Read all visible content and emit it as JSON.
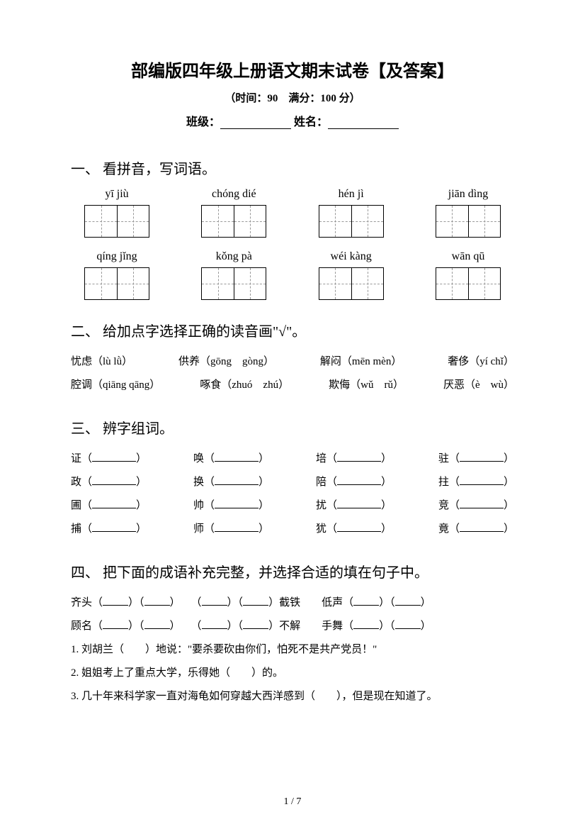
{
  "title": "部编版四年级上册语文期末试卷【及答案】",
  "subtitle": "（时间：90　满分：100 分）",
  "infoLine": {
    "classLabel": "班级：",
    "nameLabel": "姓名："
  },
  "section1": {
    "heading": "一、 看拼音，写词语。",
    "pinyinRows": [
      [
        "yī jiù",
        "chóng dié",
        "hén jì",
        "jiān dìng"
      ],
      [
        "qíng jǐng",
        "kǒng pà",
        "wéi kàng",
        "wān qū"
      ]
    ]
  },
  "section2": {
    "heading": "二、 给加点字选择正确的读音画\"√\"。",
    "lines": [
      [
        "忧虑（lù lǜ）",
        "供养（gōng　gòng）",
        "解闷（mēn mèn）",
        "奢侈（yí chǐ）"
      ],
      [
        "腔调（qiāng qāng）",
        "啄食（zhuó　zhú）",
        "欺侮（wǔ　rǔ）",
        "厌恶（è　wù）"
      ]
    ]
  },
  "section3": {
    "heading": "三、 辨字组词。",
    "rows": [
      [
        "证",
        "唤",
        "培",
        "驻"
      ],
      [
        "政",
        "换",
        "陪",
        "拄"
      ],
      [
        "圃",
        "帅",
        "扰",
        "竞"
      ],
      [
        "捕",
        "师",
        "犹",
        "竟"
      ]
    ]
  },
  "section4": {
    "heading": "四、 把下面的成语补充完整，并选择合适的填在句子中。",
    "idiomLine1": {
      "parts": [
        "齐头（",
        "）（",
        "）　　（",
        "）（",
        "）截铁　　低声（",
        "）（",
        "）"
      ]
    },
    "idiomLine2": {
      "parts": [
        "顾名（",
        "）（",
        "）　　（",
        "）（",
        "）不解　　手舞（",
        "）（",
        "）"
      ]
    },
    "sentences": [
      "1. 刘胡兰（　　）地说：\"要杀要砍由你们，怕死不是共产党员！\"",
      "2. 姐姐考上了重点大学，乐得她（　　）的。",
      "3. 几十年来科学家一直对海龟如何穿越大西洋感到（　　），但是现在知道了。"
    ]
  },
  "pageNumber": "1 / 7"
}
